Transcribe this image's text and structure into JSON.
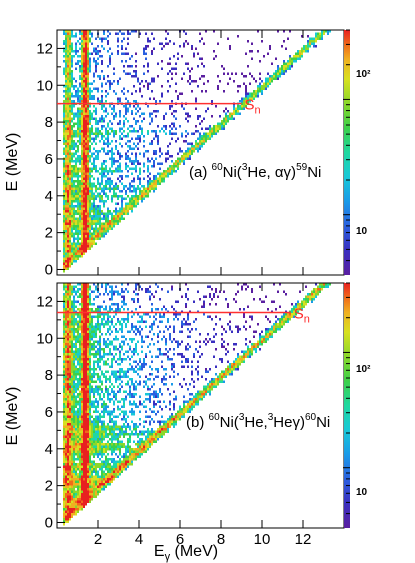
{
  "chart_data": [
    {
      "type": "heatmap",
      "panel": "top",
      "reaction": {
        "label": "(a)",
        "a_target": "60",
        "target": "Ni(",
        "a_proj": "3",
        "proj": "He, αγ)",
        "a_prod": "59",
        "prod": "Ni"
      },
      "xlabel": "",
      "ylabel": "E (MeV)",
      "xlim": [
        0,
        14
      ],
      "ylim": [
        -0.3,
        13
      ],
      "xticks": [
        "2",
        "4",
        "6",
        "8",
        "10",
        "12"
      ],
      "yticks": [
        "0",
        "2",
        "4",
        "6",
        "8",
        "10",
        "12"
      ],
      "show_x_tick_labels": false,
      "separation_energy": {
        "label_main": "S",
        "label_sub": "n",
        "E": 9.0,
        "x_end": 9.0,
        "color": "#ff3030"
      },
      "diagonal_max_ratio": 1.0,
      "hot_Egamma": [
        1.33,
        0.5
      ],
      "hot_levels": [
        1.3,
        2.4,
        2.7,
        3.2,
        4.0,
        4.5,
        5.5,
        7.5
      ],
      "colorbar": {
        "ticks": [
          "10",
          "10²"
        ],
        "range": [
          3,
          400
        ],
        "log": true
      }
    },
    {
      "type": "heatmap",
      "panel": "bottom",
      "reaction": {
        "label": "(b)",
        "a_target": "60",
        "target": "Ni(",
        "a_proj": "3",
        "proj": "He,",
        "a_proj2": "3",
        "proj2": "Heγ)",
        "a_prod": "60",
        "prod": "Ni"
      },
      "xlabel_main": "E",
      "xlabel_sub": "γ",
      "xlabel_unit": " (MeV)",
      "ylabel": "E (MeV)",
      "xlim": [
        0,
        14
      ],
      "ylim": [
        -0.3,
        13
      ],
      "xticks": [
        "2",
        "4",
        "6",
        "8",
        "10",
        "12"
      ],
      "yticks": [
        "0",
        "2",
        "4",
        "6",
        "8",
        "10",
        "12"
      ],
      "show_x_tick_labels": true,
      "separation_energy": {
        "label_main": "S",
        "label_sub": "n",
        "E": 11.4,
        "x_end": 11.4,
        "color": "#ff3030"
      },
      "diagonal_max_ratio": 1.0,
      "hot_Egamma": [
        1.33,
        0.5
      ],
      "hot_levels": [
        1.33,
        2.2,
        2.5,
        3.1,
        4.0,
        4.3,
        4.8,
        5.2
      ],
      "colorbar": {
        "ticks": [
          "10",
          "10²"
        ],
        "range": [
          3,
          400
        ],
        "log": true
      }
    }
  ],
  "colors": {
    "palette": [
      "#5a1fa0",
      "#3a2fc0",
      "#2a60e0",
      "#1a9ae8",
      "#18c8d8",
      "#20d8a0",
      "#3cd04a",
      "#8ad82a",
      "#d8e020",
      "#f0b020",
      "#f06a1a",
      "#e82020"
    ]
  }
}
